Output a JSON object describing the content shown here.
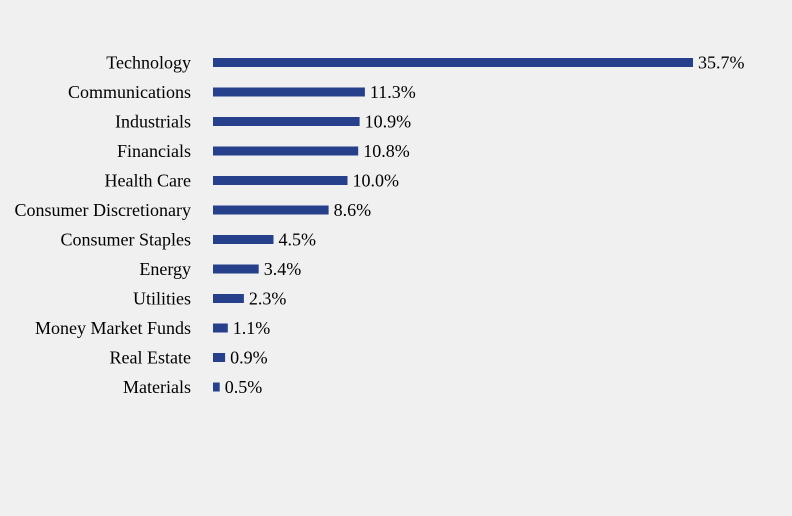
{
  "chart_data": {
    "type": "bar",
    "orientation": "horizontal",
    "categories": [
      "Technology",
      "Communications",
      "Industrials",
      "Financials",
      "Health Care",
      "Consumer Discretionary",
      "Consumer Staples",
      "Energy",
      "Utilities",
      "Money Market Funds",
      "Real Estate",
      "Materials"
    ],
    "values": [
      35.7,
      11.3,
      10.9,
      10.8,
      10.0,
      8.6,
      4.5,
      3.4,
      2.3,
      1.1,
      0.9,
      0.5
    ],
    "value_labels": [
      "35.7%",
      "11.3%",
      "10.9%",
      "10.8%",
      "10.0%",
      "8.6%",
      "4.5%",
      "3.4%",
      "2.3%",
      "1.1%",
      "0.9%",
      "0.5%"
    ],
    "title": "",
    "xlabel": "",
    "ylabel": "",
    "xlim": [
      0,
      35.7
    ],
    "grid": false,
    "legend": "none",
    "bar_color": "#26408b",
    "background_color": "#f0f0f0"
  }
}
